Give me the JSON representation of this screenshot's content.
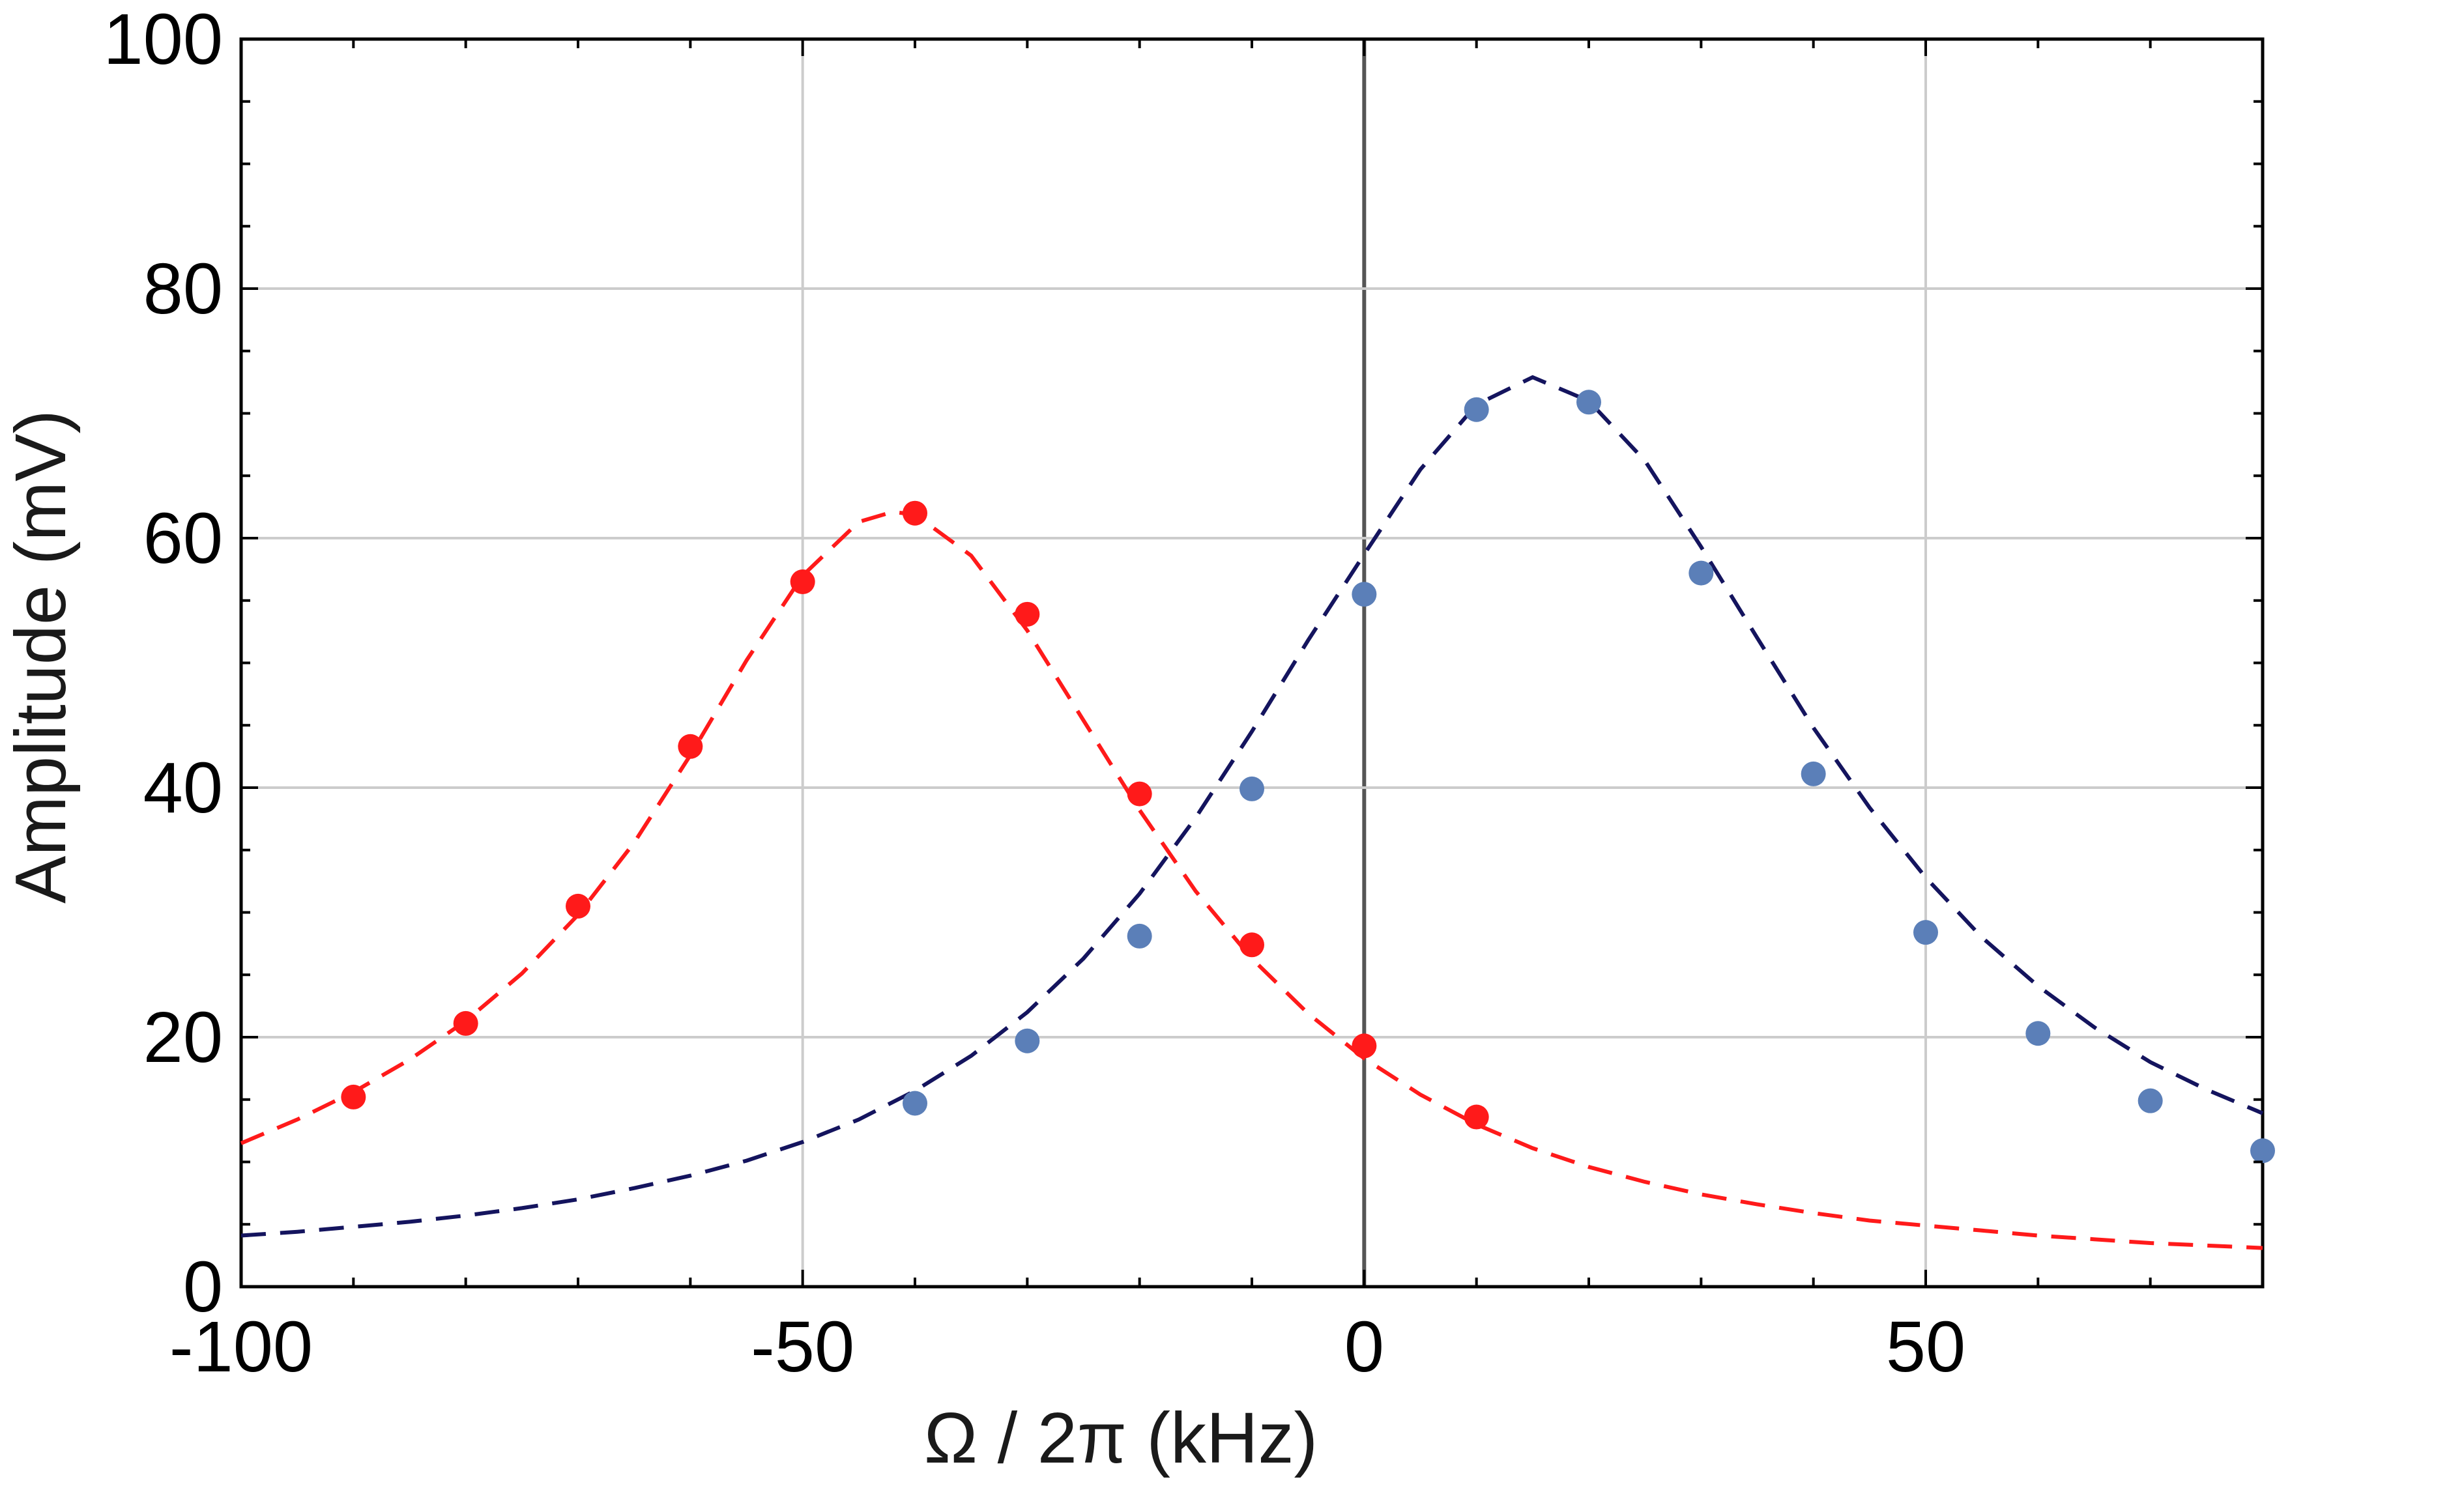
{
  "chart_data": {
    "type": "scatter",
    "title": "",
    "xlabel": "Ω / 2π (kHz)",
    "ylabel": "Amplitude (mV)",
    "xlim": [
      -100,
      80
    ],
    "ylim": [
      0,
      100
    ],
    "x_ticks": [
      -100,
      -50,
      0,
      50
    ],
    "x_tick_labels": [
      "-100",
      "-50",
      "0",
      "50"
    ],
    "y_ticks": [
      0,
      20,
      40,
      60,
      80,
      100
    ],
    "y_tick_labels": [
      "0",
      "20",
      "40",
      "60",
      "80",
      "100"
    ],
    "grid": true,
    "legend": "none",
    "series": [
      {
        "style": "points",
        "color": "#ff1a1a",
        "x": [
          -90,
          -80,
          -70,
          -60,
          -50,
          -40,
          -30,
          -20,
          -10,
          0,
          10
        ],
        "y": [
          15.2,
          21.1,
          30.5,
          43.3,
          56.5,
          62.0,
          53.9,
          39.5,
          27.4,
          19.3,
          13.6
        ]
      },
      {
        "style": "dashed-fit",
        "color": "#ff1a1a",
        "x": [
          -100,
          -95,
          -90,
          -85,
          -80,
          -75,
          -70,
          -65,
          -60,
          -55,
          -50,
          -45,
          -42,
          -40,
          -35,
          -30,
          -25,
          -20,
          -15,
          -10,
          -5,
          0,
          5,
          10,
          15,
          20,
          25,
          30,
          35,
          40,
          45,
          50,
          55,
          60,
          65,
          70,
          75,
          80
        ],
        "y": [
          11.5,
          13.4,
          15.6,
          18.2,
          21.3,
          25.1,
          29.8,
          35.6,
          42.6,
          50.2,
          57.0,
          61.3,
          62.1,
          61.9,
          58.6,
          52.6,
          45.4,
          38.2,
          31.7,
          26.3,
          21.9,
          18.3,
          15.4,
          13.0,
          11.1,
          9.6,
          8.4,
          7.4,
          6.6,
          5.9,
          5.3,
          4.9,
          4.5,
          4.1,
          3.8,
          3.5,
          3.3,
          3.1
        ]
      },
      {
        "style": "points",
        "color": "#5b7fb8",
        "x": [
          -40,
          -30,
          -20,
          -10,
          0,
          10,
          20,
          30,
          40,
          50,
          60,
          70,
          80
        ],
        "y": [
          14.7,
          19.7,
          28.1,
          39.9,
          55.5,
          70.3,
          70.9,
          57.2,
          41.1,
          28.4,
          20.3,
          14.9,
          10.9
        ]
      },
      {
        "style": "dashed-fit",
        "color": "#14145e",
        "x": [
          -100,
          -95,
          -90,
          -85,
          -80,
          -75,
          -70,
          -65,
          -60,
          -55,
          -50,
          -45,
          -40,
          -35,
          -30,
          -25,
          -20,
          -15,
          -10,
          -5,
          0,
          5,
          10,
          15,
          20,
          25,
          30,
          35,
          40,
          45,
          50,
          55,
          60,
          65,
          70,
          75,
          80
        ],
        "y": [
          4.1,
          4.4,
          4.8,
          5.2,
          5.7,
          6.3,
          7.0,
          7.9,
          8.9,
          10.1,
          11.6,
          13.4,
          15.7,
          18.5,
          22.0,
          26.3,
          31.5,
          37.6,
          44.5,
          51.8,
          58.7,
          65.5,
          70.7,
          72.9,
          71.0,
          66.2,
          59.3,
          52.0,
          44.8,
          38.4,
          32.8,
          28.0,
          24.1,
          20.8,
          18.0,
          15.8,
          13.9
        ]
      }
    ]
  }
}
